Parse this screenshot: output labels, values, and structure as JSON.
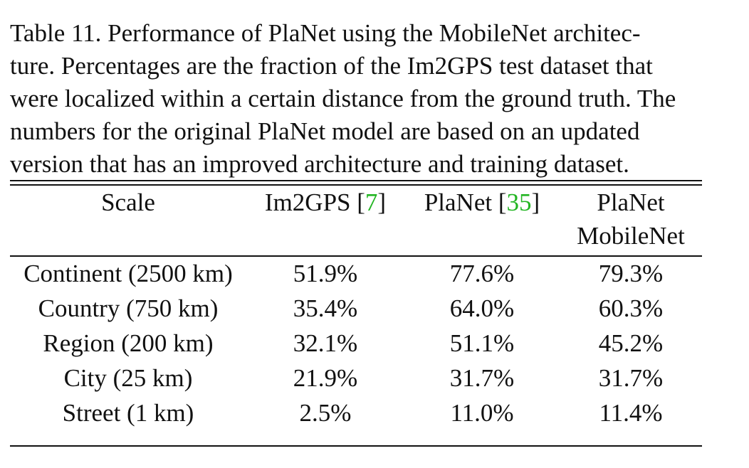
{
  "caption": {
    "lines": [
      "Table 11. Performance of PlaNet using the MobileNet architec-",
      "ture. Percentages are the fraction of the Im2GPS test dataset that",
      "were localized within a certain distance from the ground truth. The",
      "numbers for the original PlaNet model are based on an updated",
      "version that has an improved architecture and training dataset."
    ]
  },
  "table": {
    "headers": {
      "scale": "Scale",
      "im2gps": "Im2GPS",
      "im2gps_ref": "7",
      "planet": "PlaNet",
      "planet_ref": "35",
      "mobilenet_line1": "PlaNet",
      "mobilenet_line2": "MobileNet"
    },
    "rows": [
      {
        "scale": "Continent (2500 km)",
        "im2gps": "51.9%",
        "planet": "77.6%",
        "mobilenet": "79.3%"
      },
      {
        "scale": "Country (750 km)",
        "im2gps": "35.4%",
        "planet": "64.0%",
        "mobilenet": "60.3%"
      },
      {
        "scale": "Region (200 km)",
        "im2gps": "32.1%",
        "planet": "51.1%",
        "mobilenet": "45.2%"
      },
      {
        "scale": "City (25 km)",
        "im2gps": "21.9%",
        "planet": "31.7%",
        "mobilenet": "31.7%"
      },
      {
        "scale": "Street (1 km)",
        "im2gps": "2.5%",
        "planet": "11.0%",
        "mobilenet": "11.4%"
      }
    ]
  }
}
